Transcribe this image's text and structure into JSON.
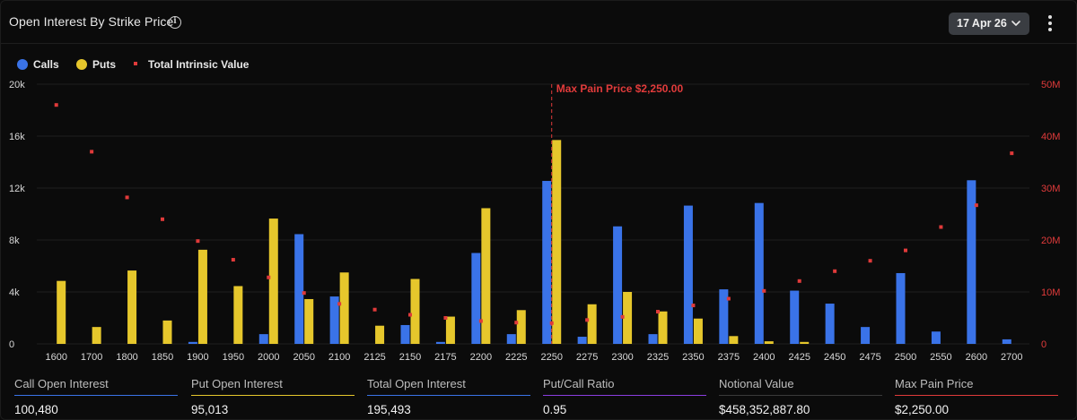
{
  "header": {
    "title": "Open Interest By Strike Price",
    "info_icon": "info-icon",
    "date_value": "17 Apr 26",
    "menu_icon": "kebab-menu-icon"
  },
  "colors": {
    "calls": "#3a73e8",
    "puts": "#e6c72c",
    "intrinsic": "#e03a3a",
    "grid": "#1f1f1f"
  },
  "chart_data": {
    "type": "bar",
    "title": "Open Interest By Strike Price",
    "legend": [
      "Calls",
      "Puts",
      "Total Intrinsic Value"
    ],
    "legend_position": "top-left",
    "categories": [
      "1600",
      "1700",
      "1800",
      "1850",
      "1900",
      "1950",
      "2000",
      "2050",
      "2100",
      "2125",
      "2150",
      "2175",
      "2200",
      "2225",
      "2250",
      "2275",
      "2300",
      "2325",
      "2350",
      "2375",
      "2400",
      "2425",
      "2450",
      "2475",
      "2500",
      "2550",
      "2600",
      "2700"
    ],
    "series": [
      {
        "name": "Calls",
        "axis": "left",
        "values": [
          0,
          0,
          0,
          0,
          150,
          0,
          750,
          8450,
          3650,
          0,
          1450,
          150,
          7000,
          750,
          12550,
          550,
          9050,
          750,
          10650,
          4200,
          10850,
          4100,
          3100,
          1300,
          5450,
          950,
          12600,
          350
        ]
      },
      {
        "name": "Puts",
        "axis": "left",
        "values": [
          4850,
          1300,
          5650,
          1800,
          7250,
          4450,
          9650,
          3450,
          5500,
          1400,
          5000,
          2100,
          10450,
          2600,
          15700,
          3050,
          4000,
          2500,
          1950,
          600,
          200,
          150,
          0,
          0,
          0,
          0,
          0,
          0
        ]
      },
      {
        "name": "Total Intrinsic Value",
        "axis": "right",
        "type": "scatter",
        "values": [
          46000000,
          37000000,
          28200000,
          24000000,
          19800000,
          16200000,
          12800000,
          9800000,
          7700000,
          6600000,
          5600000,
          5000000,
          4400000,
          4100000,
          4000000,
          4600000,
          5200000,
          6200000,
          7400000,
          8700000,
          10200000,
          12100000,
          14000000,
          16000000,
          18000000,
          22500000,
          26700000,
          36700000
        ]
      }
    ],
    "y_left": {
      "ylim": [
        0,
        20000
      ],
      "ticks": [
        0,
        4000,
        8000,
        12000,
        16000,
        20000
      ],
      "tick_labels": [
        "0",
        "4k",
        "8k",
        "12k",
        "16k",
        "20k"
      ]
    },
    "y_right": {
      "ylim": [
        0,
        50000000
      ],
      "ticks": [
        0,
        10000000,
        20000000,
        30000000,
        40000000,
        50000000
      ],
      "tick_labels": [
        "0",
        "10M",
        "20M",
        "30M",
        "40M",
        "50M"
      ]
    },
    "annotation": {
      "label": "Max Pain Price $2,250.00",
      "category": "2250"
    },
    "grid": true
  },
  "stats": [
    {
      "label": "Call Open Interest",
      "value": "100,480",
      "color": "#3a73e8"
    },
    {
      "label": "Put Open Interest",
      "value": "95,013",
      "color": "#e6c72c"
    },
    {
      "label": "Total Open Interest",
      "value": "195,493",
      "color": "#3a73e8"
    },
    {
      "label": "Put/Call Ratio",
      "value": "0.95",
      "color": "#8a3ee0"
    },
    {
      "label": "Notional Value",
      "value": "$458,352,887.80",
      "color": "#3a3a3a"
    },
    {
      "label": "Max Pain Price",
      "value": "$2,250.00",
      "color": "#e03a3a"
    }
  ]
}
